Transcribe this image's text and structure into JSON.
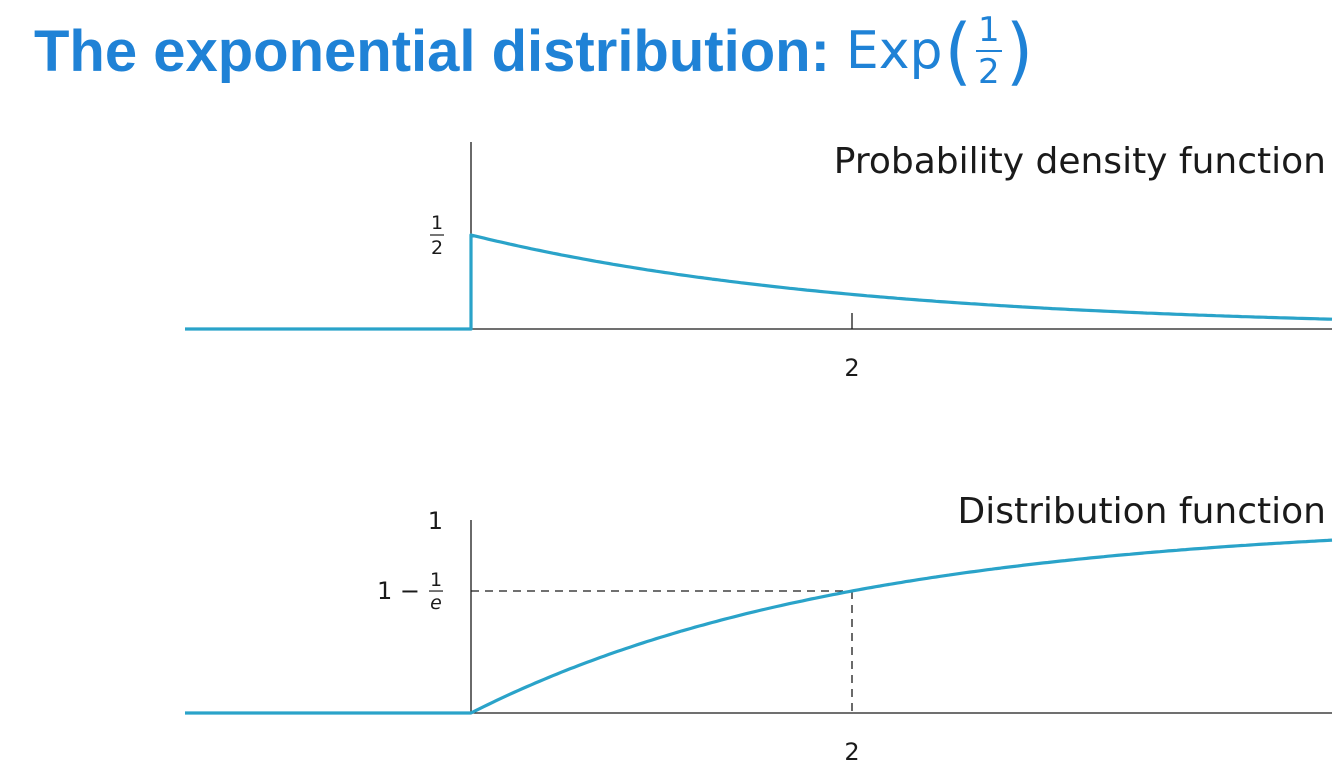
{
  "title": {
    "bold": "The exponential distribution:",
    "math": "Exp",
    "lparen": "(",
    "rparen": ")",
    "frac_num": "1",
    "frac_den": "2"
  },
  "chart_data": [
    {
      "type": "line",
      "title": "Probability density function",
      "function": "0.5*exp(-x/2) for x>=0, 0 for x<0",
      "x": [
        -1.5,
        -0.001,
        0,
        0.5,
        1,
        1.5,
        2,
        2.5,
        3,
        3.5,
        4,
        4.4
      ],
      "y": [
        0,
        0,
        0.5,
        0.389,
        0.303,
        0.236,
        0.184,
        0.143,
        0.112,
        0.087,
        0.068,
        0.055
      ],
      "xlim": [
        -1.5,
        4.4
      ],
      "ylim": [
        0,
        0.5
      ],
      "x_ticks": [
        {
          "value": 2,
          "label": "2"
        }
      ],
      "y_ticks": [
        {
          "value": 0.5,
          "num": "1",
          "den": "2"
        }
      ],
      "line_color": "#2aa3c9"
    },
    {
      "type": "line",
      "title": "Distribution function",
      "function": "1-exp(-x/2) for x>=0, 0 for x<0",
      "x": [
        -1.5,
        0,
        0.5,
        1,
        1.5,
        2,
        2.5,
        3,
        3.5,
        4,
        4.4
      ],
      "y": [
        0,
        0,
        0.221,
        0.393,
        0.528,
        0.632,
        0.713,
        0.777,
        0.826,
        0.865,
        0.889
      ],
      "xlim": [
        -1.5,
        4.4
      ],
      "ylim": [
        0,
        1
      ],
      "x_ticks": [
        {
          "value": 2,
          "label": "2"
        }
      ],
      "y_ticks": [
        {
          "value": 1,
          "label": "1"
        },
        {
          "value": 0.632,
          "prefix": "1 −",
          "num": "1",
          "den": "e"
        }
      ],
      "reference": {
        "x": 2,
        "y": 0.632,
        "style": "dashed"
      },
      "line_color": "#2aa3c9"
    }
  ]
}
